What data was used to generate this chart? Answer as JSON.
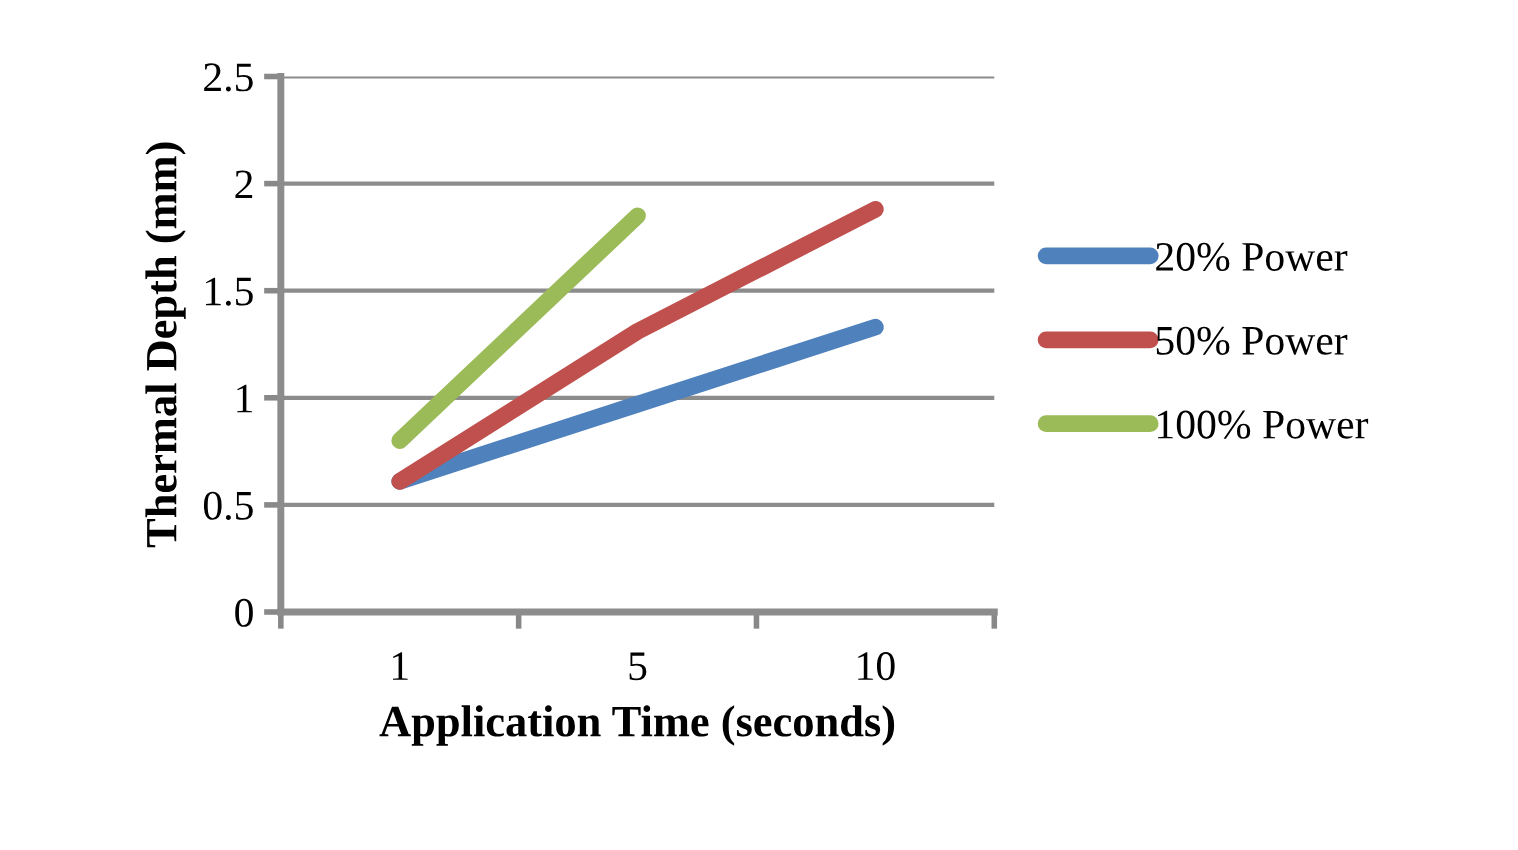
{
  "chart_data": {
    "type": "line",
    "xlabel": "Application Time (seconds)",
    "ylabel": "Thermal Depth (mm)",
    "categories": [
      "1",
      "5",
      "10"
    ],
    "series": [
      {
        "name": "20% Power",
        "color": "#4f81bd",
        "values": [
          0.61,
          0.97,
          1.33
        ]
      },
      {
        "name": "50% Power",
        "color": "#c0504d",
        "values": [
          0.61,
          1.31,
          1.88
        ]
      },
      {
        "name": "100% Power",
        "color": "#9bbb59",
        "values": [
          0.8,
          1.85,
          null
        ]
      }
    ],
    "ylim": [
      0,
      2.5
    ],
    "yticks": [
      0,
      0.5,
      1,
      1.5,
      2,
      2.5
    ],
    "grid": "y",
    "legend": "right",
    "marker": "none",
    "line_style": "solid"
  }
}
